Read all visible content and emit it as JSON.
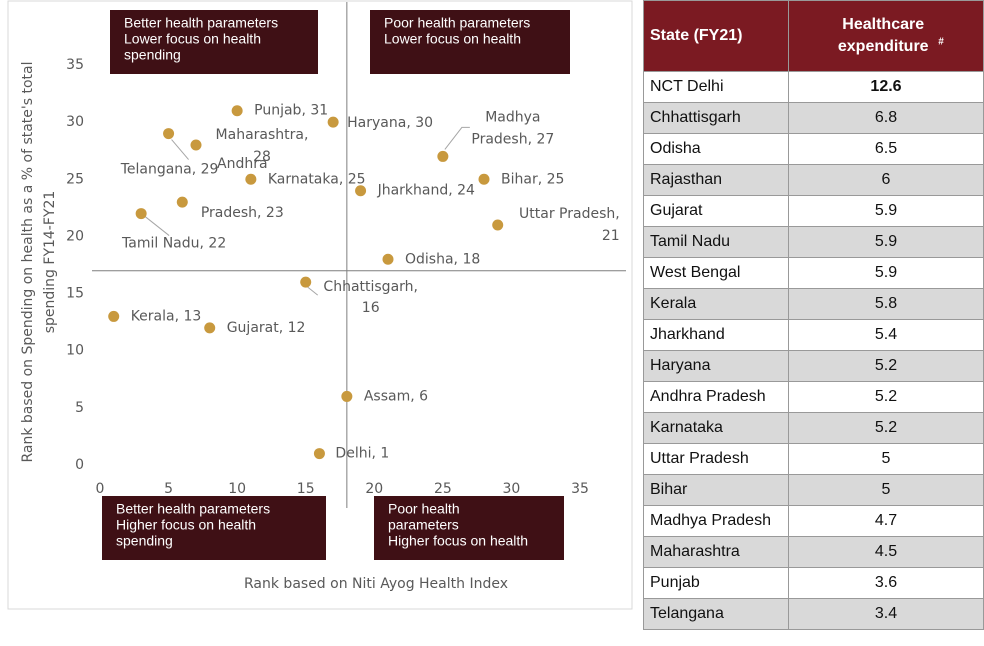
{
  "chart_data": {
    "type": "scatter",
    "x_label": "Rank based on Niti Ayog Health Index",
    "y_label": [
      "Rank based on Spending on health as a % of state's total",
      "spending FY14-FY21"
    ],
    "x": [
      10,
      17,
      7,
      5,
      25,
      6,
      11,
      19,
      28,
      3,
      29,
      21,
      15,
      1,
      8,
      18,
      16
    ],
    "values": [
      31,
      30,
      28,
      29,
      27,
      23,
      25,
      24,
      25,
      22,
      21,
      18,
      16,
      13,
      12,
      6,
      1
    ],
    "value_labels": [
      [
        "Punjab, 31"
      ],
      [
        "Haryana, 30"
      ],
      [
        "Maharashtra,",
        "28"
      ],
      [
        "Telangana, 29"
      ],
      [
        "Madhya",
        "Pradesh, 27"
      ],
      [
        "Andhra",
        "Pradesh, 23"
      ],
      [
        "Karnataka, 25"
      ],
      [
        "Jharkhand, 24"
      ],
      [
        "Bihar, 25"
      ],
      [
        "Tamil Nadu, 22"
      ],
      [
        "Uttar Pradesh,",
        "21"
      ],
      [
        "Odisha, 18"
      ],
      [
        "Chhattisgarh,",
        "16"
      ],
      [
        "Kerala, 13"
      ],
      [
        "Gujarat, 12"
      ],
      [
        "Assam, 6"
      ],
      [
        "Delhi, 1"
      ]
    ],
    "color": "#c8993e",
    "xlim": [
      0,
      35
    ],
    "ylim": [
      0,
      35
    ],
    "xticks": [
      0,
      5,
      10,
      15,
      20,
      25,
      30,
      35
    ],
    "yticks": [
      0,
      5,
      10,
      15,
      20,
      25,
      30,
      35
    ],
    "reference_lines": {
      "x": 18,
      "y": 17
    },
    "annotations": [
      [
        "Better health parameters",
        "Lower focus on health",
        "spending"
      ],
      [
        "Poor health parameters",
        "Lower focus on health"
      ],
      [
        "Better health parameters",
        "Higher focus on health",
        "spending"
      ],
      [
        "Poor health",
        "parameters",
        "Higher focus on health"
      ]
    ]
  },
  "table": {
    "headers": [
      "State (FY21)",
      "Healthcare expenditure"
    ],
    "header_marker": "#",
    "bold_first_row": true,
    "rows": [
      [
        "NCT Delhi",
        12.6
      ],
      [
        "Chhattisgarh",
        6.8
      ],
      [
        "Odisha",
        6.5
      ],
      [
        "Rajasthan",
        6
      ],
      [
        "Gujarat",
        5.9
      ],
      [
        "Tamil Nadu",
        5.9
      ],
      [
        "West Bengal",
        5.9
      ],
      [
        "Kerala",
        5.8
      ],
      [
        "Jharkhand",
        5.4
      ],
      [
        "Haryana",
        5.2
      ],
      [
        "Andhra Pradesh",
        5.2
      ],
      [
        "Karnataka",
        5.2
      ],
      [
        "Uttar Pradesh",
        5
      ],
      [
        "Bihar",
        5
      ],
      [
        "Madhya Pradesh",
        4.7
      ],
      [
        "Maharashtra",
        4.5
      ],
      [
        "Punjab",
        3.6
      ],
      [
        "Telangana",
        3.4
      ]
    ]
  }
}
